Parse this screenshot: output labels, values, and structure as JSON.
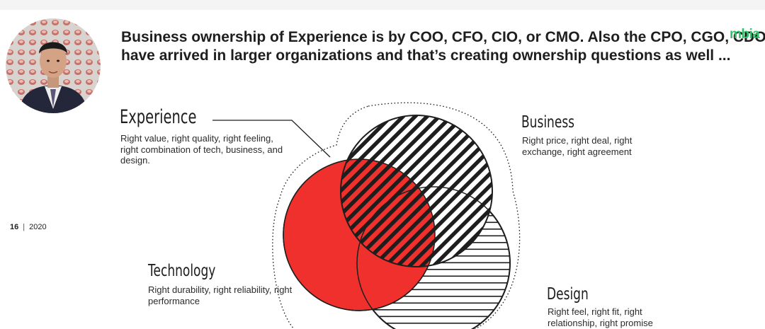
{
  "slide": {
    "headline_line1": "Business ownership of Experience is by COO, CFO, CIO, or CMO. Also the CPO, CGO, CDO",
    "headline_line2": "have arrived in larger organizations and that’s creating ownership questions as well ...",
    "brand_logo": "mbia",
    "page_number": "16",
    "page_separator": "|",
    "page_year": "2020"
  },
  "diagram": {
    "experience": {
      "title": "Experience",
      "description": "Right value, right quality, right feeling, right combination of tech, business, and design."
    },
    "business": {
      "title": "Business",
      "description": "Right price, right deal, right exchange, right agreement"
    },
    "technology": {
      "title": "Technology",
      "description": "Right durability, right reliability, right performance"
    },
    "design": {
      "title": "Design",
      "description": "Right feel, right fit, right relationship, right promise"
    }
  },
  "colors": {
    "technology_fill": "#f0302c",
    "ink": "#1e1e1e",
    "brand": "#2fc46a"
  }
}
